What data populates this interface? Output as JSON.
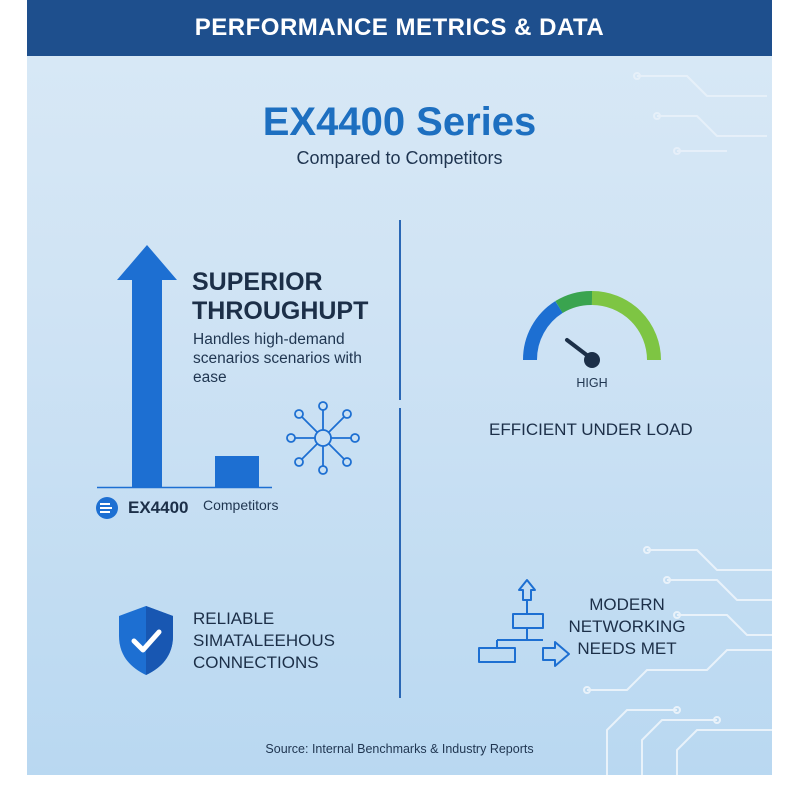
{
  "header": {
    "title": "PERFORMANCE METRICS & DATA"
  },
  "title": "EX4400 Series",
  "subtitle": "Compared to Competitors",
  "throughput": {
    "heading_line1": "SUPERIOR",
    "heading_line2": "THROUGHUPT",
    "description": "Handles high-demand scenarios scenarios with ease",
    "bars": [
      {
        "label": "EX4400",
        "relative_height": 1.0
      },
      {
        "label": "Competitors",
        "relative_height": 0.15
      }
    ]
  },
  "gauge": {
    "label": "HIGH",
    "caption": "EFFICIENT UNDER LOAD"
  },
  "reliable": {
    "line1": "RELIABLE",
    "line2": "SIMATALEEHOUS",
    "line3": "CONNECTIONS"
  },
  "modern": {
    "line1": "MODERN",
    "line2": "NETWORKING",
    "line3": "NEEDS MET"
  },
  "source": "Source: Internal Benchmarks & Industry Reports",
  "colors": {
    "header": "#1e4f8d",
    "accent": "#1d6fc0",
    "green": "#7ec543",
    "dark_green": "#3aa44f"
  },
  "icons": [
    "network-hub-icon",
    "gauge-icon",
    "shield-check-icon",
    "flowchart-icon",
    "circuit-decoration-icon"
  ]
}
